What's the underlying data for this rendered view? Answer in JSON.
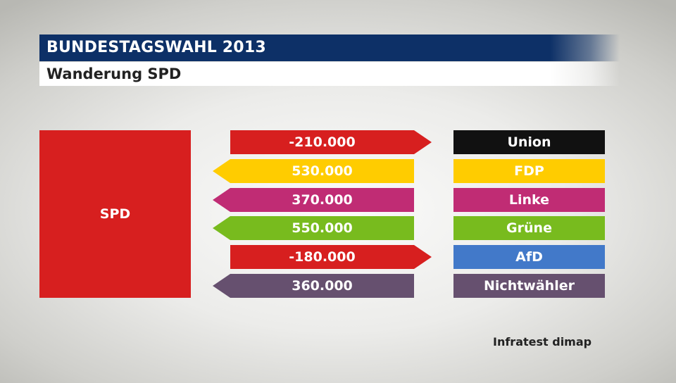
{
  "header": {
    "title": "BUNDESTAGSWAHL 2013",
    "subtitle": "Wanderung SPD"
  },
  "chart_data": {
    "type": "bar",
    "title": "BUNDESTAGSWAHL 2013",
    "subtitle": "Wanderung SPD",
    "source_party": {
      "label": "SPD",
      "color": "#d71f1f"
    },
    "flows": [
      {
        "party": "Union",
        "value": -210000,
        "label": "-210.000",
        "direction": "out",
        "arrow_color": "#d71f1f",
        "party_color": "#111111"
      },
      {
        "party": "FDP",
        "value": 530000,
        "label": "530.000",
        "direction": "in",
        "arrow_color": "#ffcc00",
        "party_color": "#ffcc00"
      },
      {
        "party": "Linke",
        "value": 370000,
        "label": "370.000",
        "direction": "in",
        "arrow_color": "#c02c74",
        "party_color": "#c02c74"
      },
      {
        "party": "Grüne",
        "value": 550000,
        "label": "550.000",
        "direction": "in",
        "arrow_color": "#78bb1e",
        "party_color": "#78bb1e"
      },
      {
        "party": "AfD",
        "value": -180000,
        "label": "-180.000",
        "direction": "out",
        "arrow_color": "#d71f1f",
        "party_color": "#4279c9"
      },
      {
        "party": "Nichtwähler",
        "value": 360000,
        "label": "360.000",
        "direction": "in",
        "arrow_color": "#66506f",
        "party_color": "#66506f"
      }
    ]
  },
  "footer": {
    "credit": "Infratest dimap"
  }
}
